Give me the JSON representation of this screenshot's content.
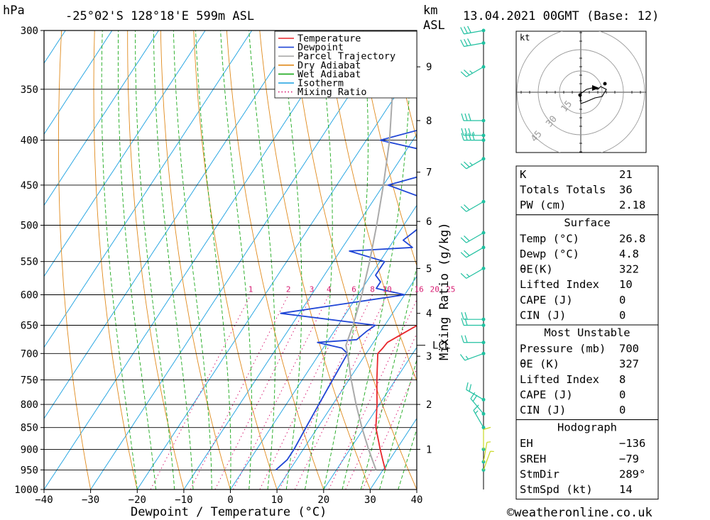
{
  "header": {
    "unit_left": "hPa",
    "location": "-25°02'S 128°18'E 599m ASL",
    "km_label": "km",
    "asl_label": "ASL",
    "datetime": "13.04.2021 00GMT (Base: 12)"
  },
  "chart_data": {
    "type": "skew-t",
    "xlabel": "Dewpoint / Temperature (°C)",
    "ylabel_right": "Mixing Ratio (g/kg)",
    "x_ticks": [
      -40,
      -30,
      -20,
      -10,
      0,
      10,
      20,
      30,
      40
    ],
    "x_tick_labels": [
      "−40",
      "−30",
      "−20",
      "−10",
      "0",
      "10",
      "20",
      "30",
      "40"
    ],
    "pressure_levels": [
      300,
      350,
      400,
      450,
      500,
      550,
      600,
      650,
      700,
      750,
      800,
      850,
      900,
      950,
      1000
    ],
    "height_ticks_km": [
      1,
      2,
      3,
      4,
      5,
      6,
      7,
      8,
      9
    ],
    "height_tick_pressures": [
      900,
      800,
      705,
      630,
      560,
      495,
      435,
      380,
      330
    ],
    "lcl_label": "LCL",
    "lcl_pressure": 685,
    "mixing_ratio_labels": [
      "1",
      "2",
      "3",
      "4",
      "6",
      "8",
      "10",
      "16",
      "20",
      "25"
    ],
    "mixing_ratio_values": [
      1,
      2,
      3,
      4,
      6,
      8,
      10,
      16,
      20,
      25
    ],
    "series": [
      {
        "name": "Temperature",
        "color": "#e8262b",
        "points": [
          [
            950,
            30.5
          ],
          [
            925,
            28.5
          ],
          [
            900,
            26.5
          ],
          [
            850,
            22.5
          ],
          [
            800,
            19.5
          ],
          [
            750,
            16
          ],
          [
            700,
            12.5
          ],
          [
            690,
            12.8
          ],
          [
            680,
            13
          ],
          [
            650,
            17
          ],
          [
            620,
            16.5
          ],
          [
            600,
            15
          ],
          [
            570,
            13
          ],
          [
            550,
            11
          ],
          [
            530,
            10.5
          ],
          [
            500,
            7.5
          ],
          [
            480,
            7
          ],
          [
            450,
            7.5
          ],
          [
            430,
            5
          ],
          [
            400,
            2
          ],
          [
            380,
            0
          ],
          [
            360,
            -2
          ]
        ]
      },
      {
        "name": "Dewpoint",
        "color": "#2046d6",
        "points": [
          [
            950,
            7
          ],
          [
            925,
            8
          ],
          [
            900,
            8
          ],
          [
            850,
            7.5
          ],
          [
            800,
            7
          ],
          [
            750,
            6.5
          ],
          [
            700,
            6
          ],
          [
            690,
            4
          ],
          [
            680,
            -2
          ],
          [
            675,
            6
          ],
          [
            660,
            7
          ],
          [
            650,
            8
          ],
          [
            630,
            -14
          ],
          [
            600,
            10
          ],
          [
            590,
            3
          ],
          [
            580,
            3
          ],
          [
            570,
            1
          ],
          [
            550,
            1
          ],
          [
            535,
            -8
          ],
          [
            530,
            5
          ],
          [
            520,
            2
          ],
          [
            510,
            3
          ],
          [
            500,
            4
          ],
          [
            490,
            9
          ],
          [
            480,
            7
          ],
          [
            470,
            3
          ],
          [
            450,
            -9
          ],
          [
            430,
            2
          ],
          [
            420,
            3
          ],
          [
            400,
            -17
          ],
          [
            380,
            -4
          ],
          [
            375,
            -9
          ],
          [
            360,
            -1
          ],
          [
            340,
            -1
          ],
          [
            320,
            -3
          ],
          [
            300,
            -4
          ]
        ]
      },
      {
        "name": "Parcel Trajectory",
        "color": "#aaaaaa",
        "points": [
          [
            950,
            28.5
          ],
          [
            900,
            24
          ],
          [
            850,
            19.5
          ],
          [
            800,
            15
          ],
          [
            750,
            10.5
          ],
          [
            700,
            6
          ],
          [
            685,
            4.5
          ],
          [
            650,
            3.2
          ],
          [
            600,
            0.8
          ],
          [
            550,
            -2.2
          ],
          [
            500,
            -5.8
          ],
          [
            450,
            -10
          ],
          [
            400,
            -15
          ],
          [
            350,
            -21.5
          ],
          [
            300,
            -29.5
          ]
        ]
      }
    ],
    "legend": [
      "Temperature",
      "Dewpoint",
      "Parcel Trajectory",
      "Dry Adiabat",
      "Wet Adiabat",
      "Isotherm",
      "Mixing Ratio"
    ],
    "legend_placement": "top-right",
    "background_lines": {
      "isotherm": "#1aa0e0",
      "dry_adiabat": "#e08a1c",
      "wet_adiabat": "#1aa81a",
      "mixing_ratio": "#d81b72"
    }
  },
  "hodograph": {
    "unit": "kt",
    "ring_labels": [
      "15",
      "30",
      "45"
    ],
    "ring_values": [
      15,
      30,
      45
    ],
    "trace": [
      [
        -0.5,
        -2
      ],
      [
        0,
        -8
      ],
      [
        3,
        -7
      ],
      [
        10,
        -4
      ],
      [
        15,
        -3
      ],
      [
        18,
        2
      ],
      [
        14,
        4
      ],
      [
        12,
        2
      ],
      [
        8,
        3
      ],
      [
        4,
        2
      ],
      [
        0,
        -1
      ]
    ],
    "storm_motion": [
      11,
      3
    ]
  },
  "indices": {
    "rows": [
      {
        "label": "K",
        "value": "21"
      },
      {
        "label": "Totals Totals",
        "value": "36"
      },
      {
        "label": "PW (cm)",
        "value": "2.18"
      }
    ]
  },
  "surface": {
    "title": "Surface",
    "rows": [
      {
        "label": "Temp (°C)",
        "value": "26.8"
      },
      {
        "label": "Dewp (°C)",
        "value": "4.8"
      },
      {
        "label": "θE(K)",
        "value": "322"
      },
      {
        "label": "Lifted Index",
        "value": "10"
      },
      {
        "label": "CAPE (J)",
        "value": "0"
      },
      {
        "label": "CIN (J)",
        "value": "0"
      }
    ]
  },
  "most_unstable": {
    "title": "Most Unstable",
    "rows": [
      {
        "label": "Pressure (mb)",
        "value": "700"
      },
      {
        "label": "θE (K)",
        "value": "327"
      },
      {
        "label": "Lifted Index",
        "value": "8"
      },
      {
        "label": "CAPE (J)",
        "value": "0"
      },
      {
        "label": "CIN (J)",
        "value": "0"
      }
    ]
  },
  "hodograph_table": {
    "title": "Hodograph",
    "rows": [
      {
        "label": "EH",
        "value": "−136"
      },
      {
        "label": "SREH",
        "value": "−79"
      },
      {
        "label": "StmDir",
        "value": "289°"
      },
      {
        "label": "StmSpd (kt)",
        "value": "14"
      }
    ]
  },
  "footer": {
    "copyright": "©weatheronline.co.uk"
  },
  "wind_barbs": {
    "color": "#20c0a0",
    "surface_color": "#c8d820",
    "levels": [
      {
        "p": 300,
        "dir": 260,
        "spd": 30
      },
      {
        "p": 310,
        "dir": 260,
        "spd": 30
      },
      {
        "p": 330,
        "dir": 240,
        "spd": 25
      },
      {
        "p": 380,
        "dir": 270,
        "spd": 30
      },
      {
        "p": 395,
        "dir": 270,
        "spd": 35
      },
      {
        "p": 400,
        "dir": 270,
        "spd": 40
      },
      {
        "p": 420,
        "dir": 240,
        "spd": 25
      },
      {
        "p": 470,
        "dir": 240,
        "spd": 20
      },
      {
        "p": 510,
        "dir": 240,
        "spd": 20
      },
      {
        "p": 530,
        "dir": 240,
        "spd": 20
      },
      {
        "p": 560,
        "dir": 240,
        "spd": 15
      },
      {
        "p": 640,
        "dir": 270,
        "spd": 20
      },
      {
        "p": 650,
        "dir": 270,
        "spd": 20
      },
      {
        "p": 680,
        "dir": 270,
        "spd": 20
      },
      {
        "p": 700,
        "dir": 250,
        "spd": 15
      },
      {
        "p": 790,
        "dir": 300,
        "spd": 20
      },
      {
        "p": 820,
        "dir": 320,
        "spd": 20
      },
      {
        "p": 850,
        "dir": 330,
        "spd": 15
      },
      {
        "p": 900,
        "dir": 0,
        "spd": 10
      },
      {
        "p": 930,
        "dir": 10,
        "spd": 5
      },
      {
        "p": 950,
        "dir": 20,
        "spd": 5
      }
    ]
  }
}
